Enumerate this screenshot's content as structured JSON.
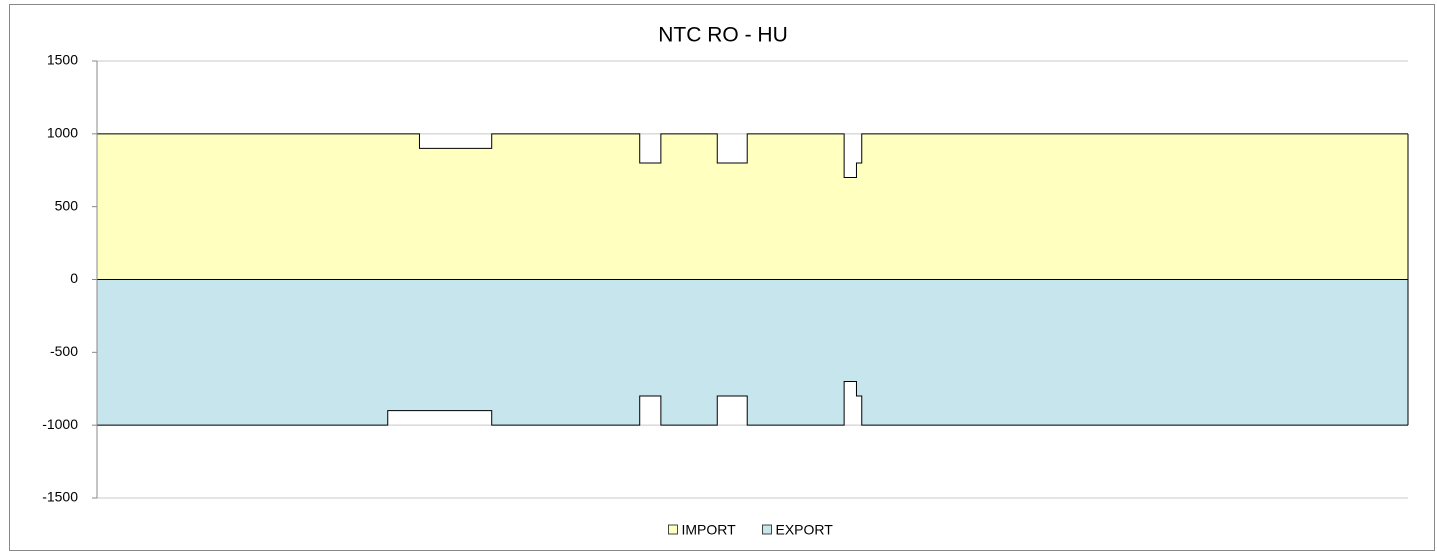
{
  "chart_data": {
    "type": "area",
    "title": "NTC RO - HU",
    "xlim": [
      0,
      744
    ],
    "ylim": [
      -1500,
      1500
    ],
    "yticks": [
      -1500,
      -1000,
      -500,
      0,
      500,
      1000,
      1500
    ],
    "grid": true,
    "legend": "bottom",
    "series": [
      {
        "name": "IMPORT",
        "color": "#ffffc0",
        "x": [
          0,
          183,
          183,
          224,
          224,
          308,
          308,
          320,
          320,
          352,
          352,
          369,
          369,
          424,
          424,
          431,
          431,
          434,
          434,
          744
        ],
        "values": [
          1000,
          1000,
          900,
          900,
          1000,
          1000,
          800,
          800,
          1000,
          1000,
          800,
          800,
          1000,
          1000,
          700,
          700,
          800,
          800,
          1000,
          1000
        ]
      },
      {
        "name": "EXPORT",
        "color": "#c6e5ed",
        "x": [
          0,
          165,
          165,
          224,
          224,
          308,
          308,
          320,
          320,
          352,
          352,
          369,
          369,
          424,
          424,
          431,
          431,
          434,
          434,
          744
        ],
        "values": [
          -1000,
          -1000,
          -900,
          -900,
          -1000,
          -1000,
          -800,
          -800,
          -1000,
          -1000,
          -800,
          -800,
          -1000,
          -1000,
          -700,
          -700,
          -800,
          -800,
          -1000,
          -1000
        ]
      }
    ]
  }
}
